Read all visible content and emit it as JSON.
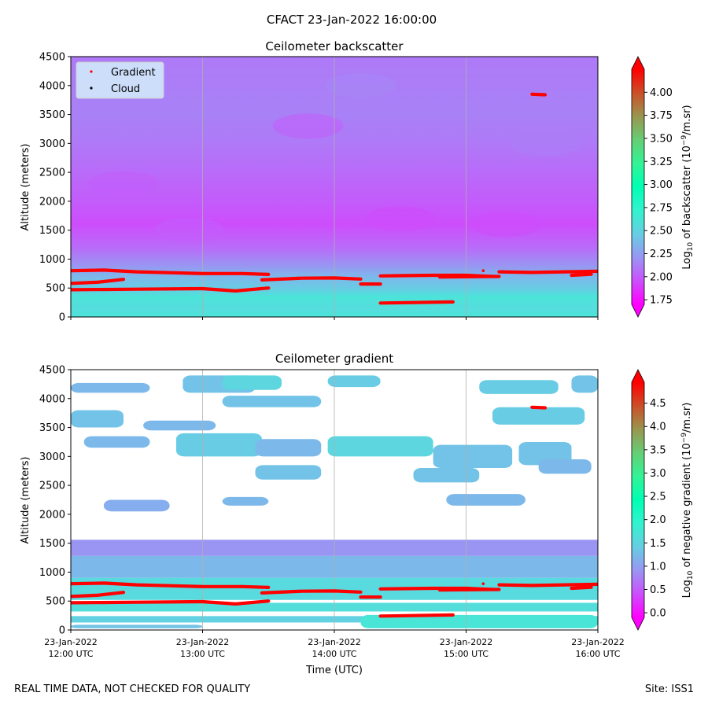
{
  "suptitle": "CFACT 23-Jan-2022 16:00:00",
  "footer": {
    "left": "REAL TIME DATA, NOT CHECKED FOR QUALITY",
    "right": "Site: ISS1"
  },
  "colors": {
    "gradient_marker": "#ff0000",
    "cloud_marker": "#000000",
    "grid": "#b0b0b0"
  },
  "chart_data": [
    {
      "type": "heatmap",
      "title": "Ceilometer backscatter",
      "xlabel": "",
      "ylabel": "Altitude (meters)",
      "ylim": [
        0,
        4500
      ],
      "yticks": [
        "0",
        "500",
        "1000",
        "1500",
        "2000",
        "2500",
        "3000",
        "3500",
        "4000",
        "4500"
      ],
      "xlim_hours": [
        12,
        16
      ],
      "legend": {
        "placement": "top-left",
        "entries": [
          "Gradient",
          "Cloud"
        ]
      },
      "colorbar": {
        "label_prefix": "Log",
        "label_sub": "10",
        "label_rest": " of backscatter (10",
        "label_sup": "−9",
        "label_end": "/m.sr)",
        "range": [
          1.7,
          4.25
        ],
        "ticks": [
          "1.75",
          "2.00",
          "2.25",
          "2.50",
          "2.75",
          "3.00",
          "3.25",
          "3.50",
          "3.75",
          "4.00"
        ],
        "extend": "both",
        "colormap": "rainbow"
      },
      "field": {
        "description": "values in log10 units by altitude (m)",
        "profile": [
          [
            0,
            2.6
          ],
          [
            150,
            2.55
          ],
          [
            350,
            2.6
          ],
          [
            500,
            2.45
          ],
          [
            700,
            2.35
          ],
          [
            900,
            2.2
          ],
          [
            1200,
            2.05
          ],
          [
            1600,
            1.95
          ],
          [
            2000,
            2.0
          ],
          [
            2500,
            2.05
          ],
          [
            3000,
            2.1
          ],
          [
            3500,
            2.13
          ],
          [
            4000,
            2.12
          ],
          [
            4500,
            2.1
          ]
        ]
      }
    },
    {
      "type": "heatmap",
      "title": "Ceilometer gradient",
      "xlabel": "Time (UTC)",
      "ylabel": "Altitude (meters)",
      "ylim": [
        0,
        4500
      ],
      "yticks": [
        "0",
        "500",
        "1000",
        "1500",
        "2000",
        "2500",
        "3000",
        "3500",
        "4000",
        "4500"
      ],
      "xlim_hours": [
        12,
        16
      ],
      "xticks": [
        {
          "date": "23-Jan-2022",
          "time": "12:00 UTC",
          "hour": 12
        },
        {
          "date": "23-Jan-2022",
          "time": "13:00 UTC",
          "hour": 13
        },
        {
          "date": "23-Jan-2022",
          "time": "14:00 UTC",
          "hour": 14
        },
        {
          "date": "23-Jan-2022",
          "time": "15:00 UTC",
          "hour": 15
        },
        {
          "date": "23-Jan-2022",
          "time": "16:00 UTC",
          "hour": 16
        }
      ],
      "colorbar": {
        "label_prefix": "Log",
        "label_sub": "10",
        "label_rest": " of negative gradient (10",
        "label_sup": "−9",
        "label_end": "/m.sr)",
        "range": [
          -0.1,
          4.95
        ],
        "ticks": [
          "0.0",
          "0.5",
          "1.0",
          "1.5",
          "2.0",
          "2.5",
          "3.0",
          "3.5",
          "4.0",
          "4.5"
        ],
        "extend": "both",
        "colormap": "rainbow"
      },
      "patches": [
        {
          "hours": [
            12.0,
            16.0
          ],
          "alt": [
            1280,
            1560
          ],
          "value": 0.9
        },
        {
          "hours": [
            12.0,
            16.0
          ],
          "alt": [
            900,
            1280
          ],
          "value": 1.2
        },
        {
          "hours": [
            12.0,
            16.0
          ],
          "alt": [
            520,
            900
          ],
          "value": 1.55
        },
        {
          "hours": [
            12.0,
            16.0
          ],
          "alt": [
            320,
            470
          ],
          "value": 1.6
        },
        {
          "hours": [
            12.0,
            16.0
          ],
          "alt": [
            130,
            240
          ],
          "value": 1.45
        },
        {
          "hours": [
            14.2,
            16.0
          ],
          "alt": [
            30,
            260
          ],
          "value": 1.7
        },
        {
          "hours": [
            12.0,
            13.0
          ],
          "alt": [
            30,
            90
          ],
          "value": 1.3
        },
        {
          "hours": [
            12.0,
            12.6
          ],
          "alt": [
            4100,
            4270
          ],
          "value": 1.2
        },
        {
          "hours": [
            12.85,
            13.4
          ],
          "alt": [
            4100,
            4400
          ],
          "value": 1.3
        },
        {
          "hours": [
            13.15,
            13.6
          ],
          "alt": [
            4150,
            4400
          ],
          "value": 1.5
        },
        {
          "hours": [
            13.95,
            14.35
          ],
          "alt": [
            4200,
            4400
          ],
          "value": 1.4
        },
        {
          "hours": [
            15.1,
            15.7
          ],
          "alt": [
            4080,
            4320
          ],
          "value": 1.4
        },
        {
          "hours": [
            15.8,
            16.0
          ],
          "alt": [
            4100,
            4400
          ],
          "value": 1.3
        },
        {
          "hours": [
            12.0,
            12.4
          ],
          "alt": [
            3500,
            3800
          ],
          "value": 1.3
        },
        {
          "hours": [
            12.55,
            13.1
          ],
          "alt": [
            3450,
            3620
          ],
          "value": 1.2
        },
        {
          "hours": [
            13.15,
            13.9
          ],
          "alt": [
            3850,
            4050
          ],
          "value": 1.3
        },
        {
          "hours": [
            15.2,
            15.9
          ],
          "alt": [
            3550,
            3850
          ],
          "value": 1.4
        },
        {
          "hours": [
            12.1,
            12.6
          ],
          "alt": [
            3150,
            3350
          ],
          "value": 1.2
        },
        {
          "hours": [
            12.8,
            13.45
          ],
          "alt": [
            3000,
            3400
          ],
          "value": 1.4
        },
        {
          "hours": [
            13.4,
            13.9
          ],
          "alt": [
            3000,
            3300
          ],
          "value": 1.2
        },
        {
          "hours": [
            13.95,
            14.75
          ],
          "alt": [
            3000,
            3350
          ],
          "value": 1.5
        },
        {
          "hours": [
            14.75,
            15.35
          ],
          "alt": [
            2800,
            3200
          ],
          "value": 1.3
        },
        {
          "hours": [
            15.4,
            15.8
          ],
          "alt": [
            2850,
            3250
          ],
          "value": 1.3
        },
        {
          "hours": [
            13.4,
            13.9
          ],
          "alt": [
            2600,
            2850
          ],
          "value": 1.3
        },
        {
          "hours": [
            14.6,
            15.1
          ],
          "alt": [
            2550,
            2800
          ],
          "value": 1.3
        },
        {
          "hours": [
            15.55,
            15.95
          ],
          "alt": [
            2700,
            2950
          ],
          "value": 1.2
        },
        {
          "hours": [
            12.25,
            12.75
          ],
          "alt": [
            2050,
            2250
          ],
          "value": 1.1
        },
        {
          "hours": [
            13.15,
            13.5
          ],
          "alt": [
            2150,
            2300
          ],
          "value": 1.2
        },
        {
          "hours": [
            14.85,
            15.45
          ],
          "alt": [
            2150,
            2350
          ],
          "value": 1.2
        }
      ]
    }
  ],
  "overlays": {
    "gradient_lines": [
      {
        "hours": [
          12.0,
          12.25,
          12.5,
          12.75,
          13.0,
          13.3,
          13.5
        ],
        "alt": [
          800,
          810,
          780,
          765,
          750,
          750,
          735
        ]
      },
      {
        "hours": [
          12.0,
          12.2,
          12.4
        ],
        "alt": [
          580,
          600,
          650
        ]
      },
      {
        "hours": [
          12.0,
          12.5,
          13.0,
          13.25,
          13.5
        ],
        "alt": [
          470,
          480,
          490,
          450,
          500
        ]
      },
      {
        "hours": [
          13.45,
          13.75,
          14.0,
          14.2
        ],
        "alt": [
          640,
          670,
          675,
          655
        ]
      },
      {
        "hours": [
          14.2,
          14.35
        ],
        "alt": [
          570,
          570
        ]
      },
      {
        "hours": [
          14.35,
          14.9
        ],
        "alt": [
          240,
          260
        ]
      },
      {
        "hours": [
          14.35,
          14.75,
          15.0,
          15.2,
          15.25
        ],
        "alt": [
          710,
          720,
          720,
          700,
          700
        ]
      },
      {
        "hours": [
          14.8,
          15.2
        ],
        "alt": [
          690,
          700
        ]
      },
      {
        "hours": [
          15.25,
          15.5,
          15.75,
          16.0
        ],
        "alt": [
          780,
          770,
          780,
          790
        ]
      },
      {
        "hours": [
          15.8,
          15.95
        ],
        "alt": [
          720,
          740
        ]
      },
      {
        "hours": [
          15.5,
          15.6
        ],
        "alt": [
          3850,
          3840
        ]
      }
    ]
  }
}
